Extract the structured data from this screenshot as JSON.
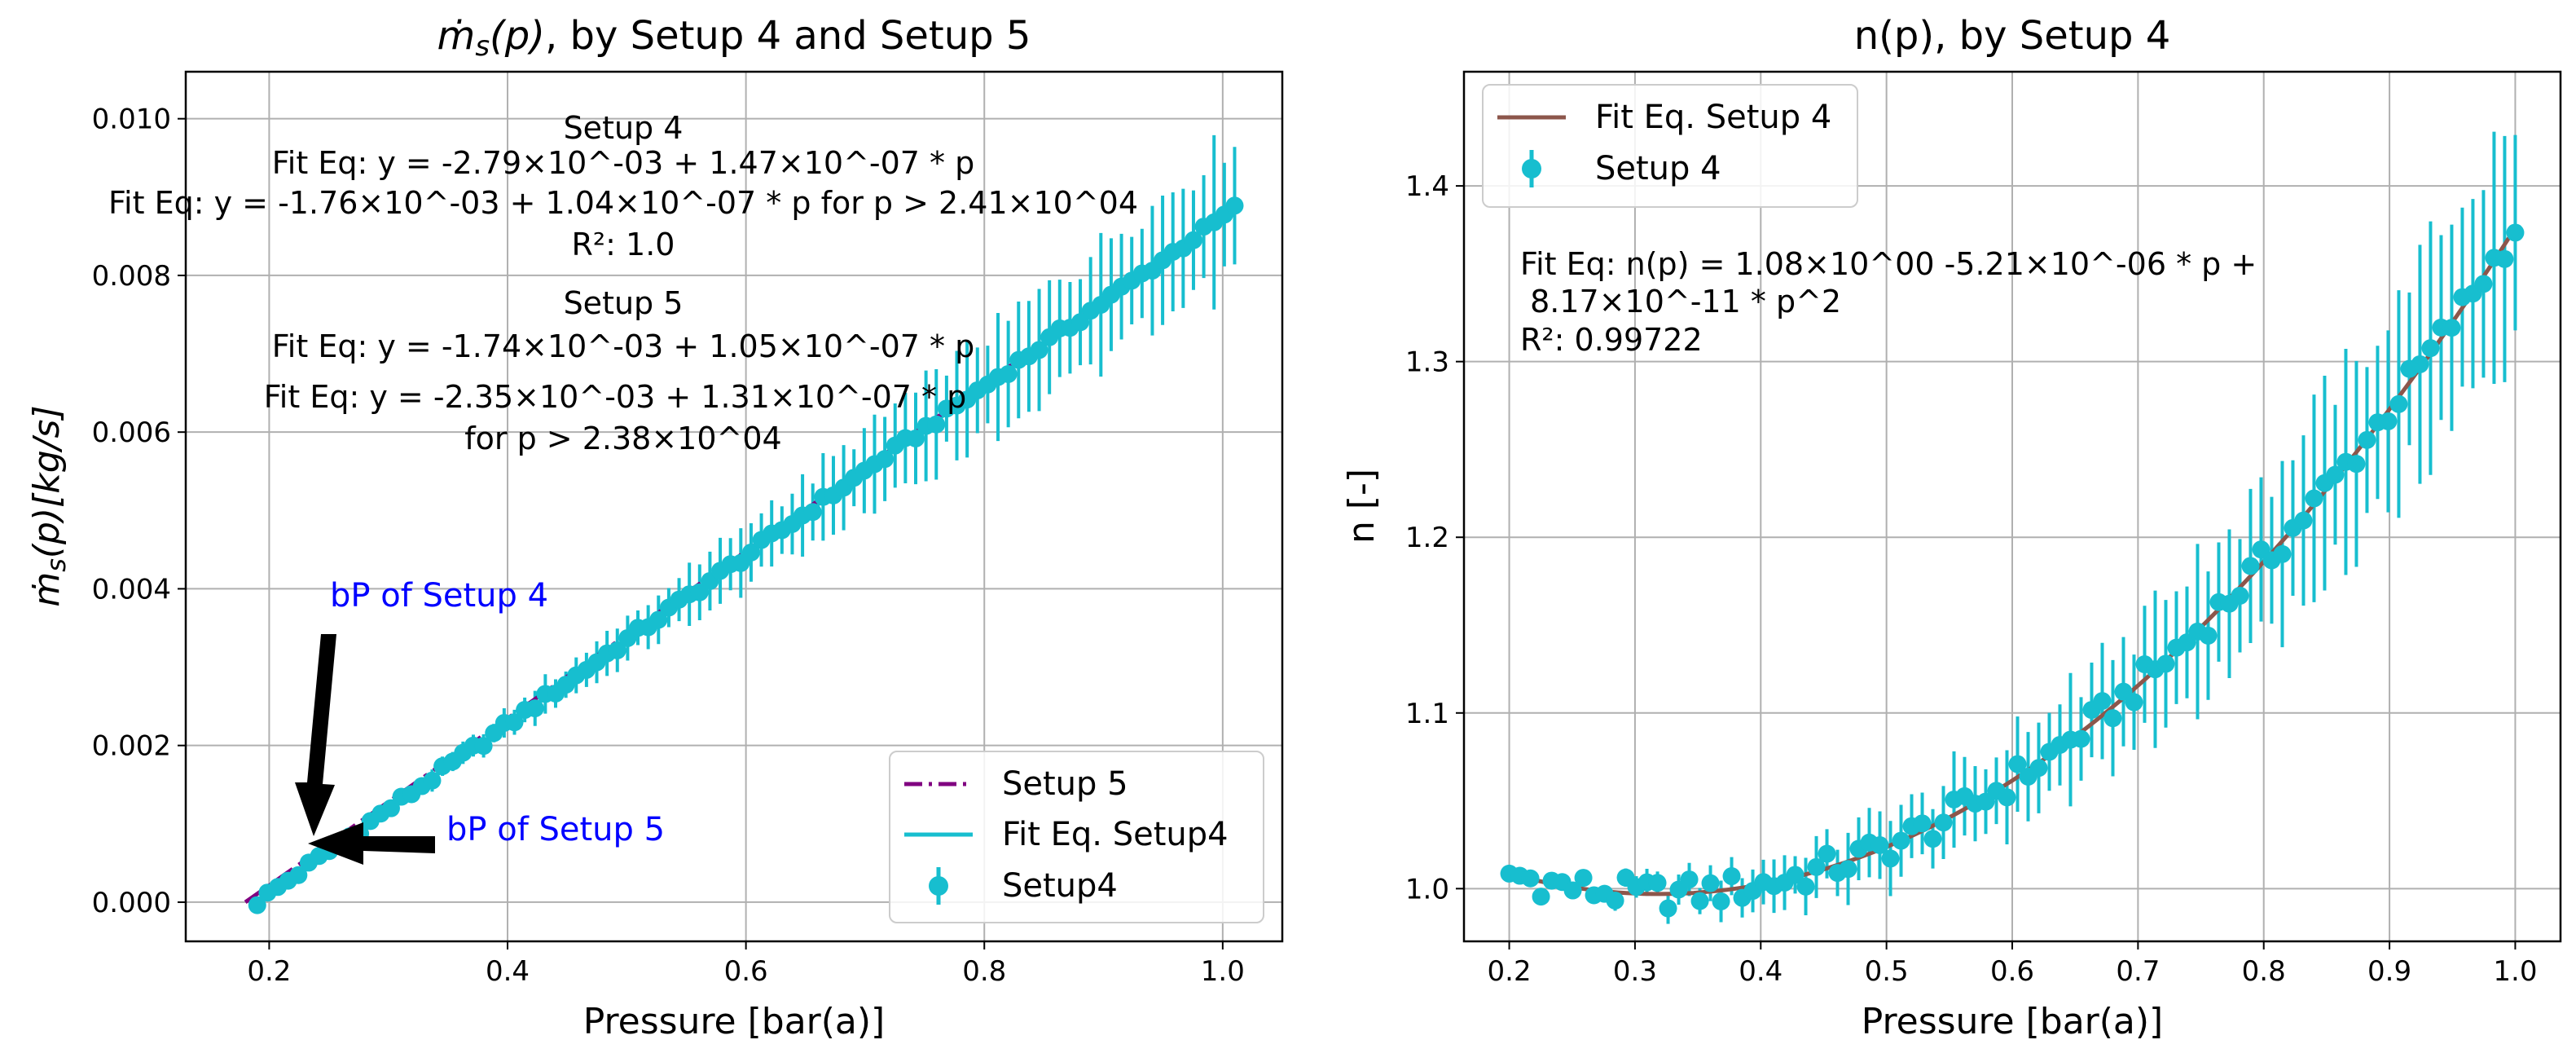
{
  "chart_data": [
    {
      "type": "scatter",
      "title": "ṁs(p), by Setup 4 and Setup 5",
      "title_parts": [
        "ṁ",
        "s",
        "(p)",
        ", by Setup 4 and Setup 5"
      ],
      "xlabel": "Pressure [bar(a)]",
      "ylabel": "ṁs(p)[kg/s]",
      "ylabel_parts": [
        "ṁ",
        "s",
        "(p)[kg/s]"
      ],
      "xlim": [
        0.13,
        1.05
      ],
      "ylim": [
        -0.0005,
        0.0106
      ],
      "xticks": [
        0.2,
        0.4,
        0.6,
        0.8,
        1.0
      ],
      "xtick_labels": [
        "0.2",
        "0.4",
        "0.6",
        "0.8",
        "1.0"
      ],
      "yticks": [
        0.0,
        0.002,
        0.004,
        0.006,
        0.008,
        0.01
      ],
      "ytick_labels": [
        "0.000",
        "0.002",
        "0.004",
        "0.006",
        "0.008",
        "0.010"
      ],
      "grid": true,
      "series": [
        {
          "name": "Setup 5",
          "kind": "line",
          "style": "dash-dot",
          "color": "#800080",
          "x": [
            0.18,
            1.01
          ],
          "y": [
            0.0,
            0.00885
          ]
        },
        {
          "name": "Fit Eq. Setup4",
          "kind": "line",
          "style": "solid",
          "color": "#17becf",
          "x": [
            0.19,
            1.01
          ],
          "y": [
            0.0,
            0.00885
          ]
        },
        {
          "name": "Setup4",
          "kind": "errorbar",
          "color": "#17becf",
          "x_start": 0.19,
          "x_end": 1.01,
          "y_start": 0.0,
          "y_end": 0.00885,
          "n_points": 96,
          "error_start": 2e-05,
          "error_end": 0.0009
        }
      ],
      "legend": {
        "position": "bottom-right",
        "entries": [
          "Setup 5",
          "Fit Eq. Setup4",
          "Setup4"
        ]
      },
      "annotations": [
        "Setup 4",
        "Fit Eq: y = -2.79×10^-03 + 1.47×10^-07 * p",
        "Fit Eq: y = -1.76×10^-03 + 1.04×10^-07 * p for p > 2.41×10^04",
        "R²: 1.0",
        "Setup 5",
        "Fit Eq: y = -1.74×10^-03 + 1.05×10^-07 * p",
        "Fit Eq: y = -2.35×10^-03 + 1.31×10^-07 * p",
        "for p > 2.38×10^04"
      ],
      "arrows": [
        {
          "label": "bP of Setup 4",
          "color": "#0000ff",
          "target": [
            0.24,
            0.0008
          ]
        },
        {
          "label": "bP of Setup 5",
          "color": "#0000ff",
          "target": [
            0.24,
            0.0008
          ]
        }
      ]
    },
    {
      "type": "scatter",
      "title": "n(p), by Setup 4",
      "xlabel": "Pressure [bar(a)]",
      "ylabel": "n [-]",
      "xlim": [
        0.164,
        1.036
      ],
      "ylim": [
        0.97,
        1.465
      ],
      "xticks": [
        0.2,
        0.3,
        0.4,
        0.5,
        0.6,
        0.7,
        0.8,
        0.9,
        1.0
      ],
      "xtick_labels": [
        "0.2",
        "0.3",
        "0.4",
        "0.5",
        "0.6",
        "0.7",
        "0.8",
        "0.9",
        "1.0"
      ],
      "yticks": [
        1.0,
        1.1,
        1.2,
        1.3,
        1.4
      ],
      "ytick_labels": [
        "1.0",
        "1.1",
        "1.2",
        "1.3",
        "1.4"
      ],
      "grid": true,
      "series": [
        {
          "name": "Fit Eq. Setup 4",
          "kind": "line",
          "style": "solid",
          "color": "#8c564b",
          "equation": "n(p) = 1.08 - 0.521*p + 0.817*p^2",
          "x_range": [
            0.2,
            1.0
          ]
        },
        {
          "name": "Setup 4",
          "kind": "errorbar",
          "color": "#17becf",
          "x_start": 0.2,
          "x_end": 1.0,
          "n_points": 96,
          "error_start": 0.003,
          "error_end": 0.065
        }
      ],
      "legend": {
        "position": "top-left",
        "entries": [
          "Fit Eq. Setup 4",
          "Setup 4"
        ]
      },
      "annotations": [
        "Fit Eq: n(p) = 1.08×10^00  -5.21×10^-06 * p +",
        " 8.17×10^-11 * p^2",
        "R²: 0.99722"
      ]
    }
  ]
}
